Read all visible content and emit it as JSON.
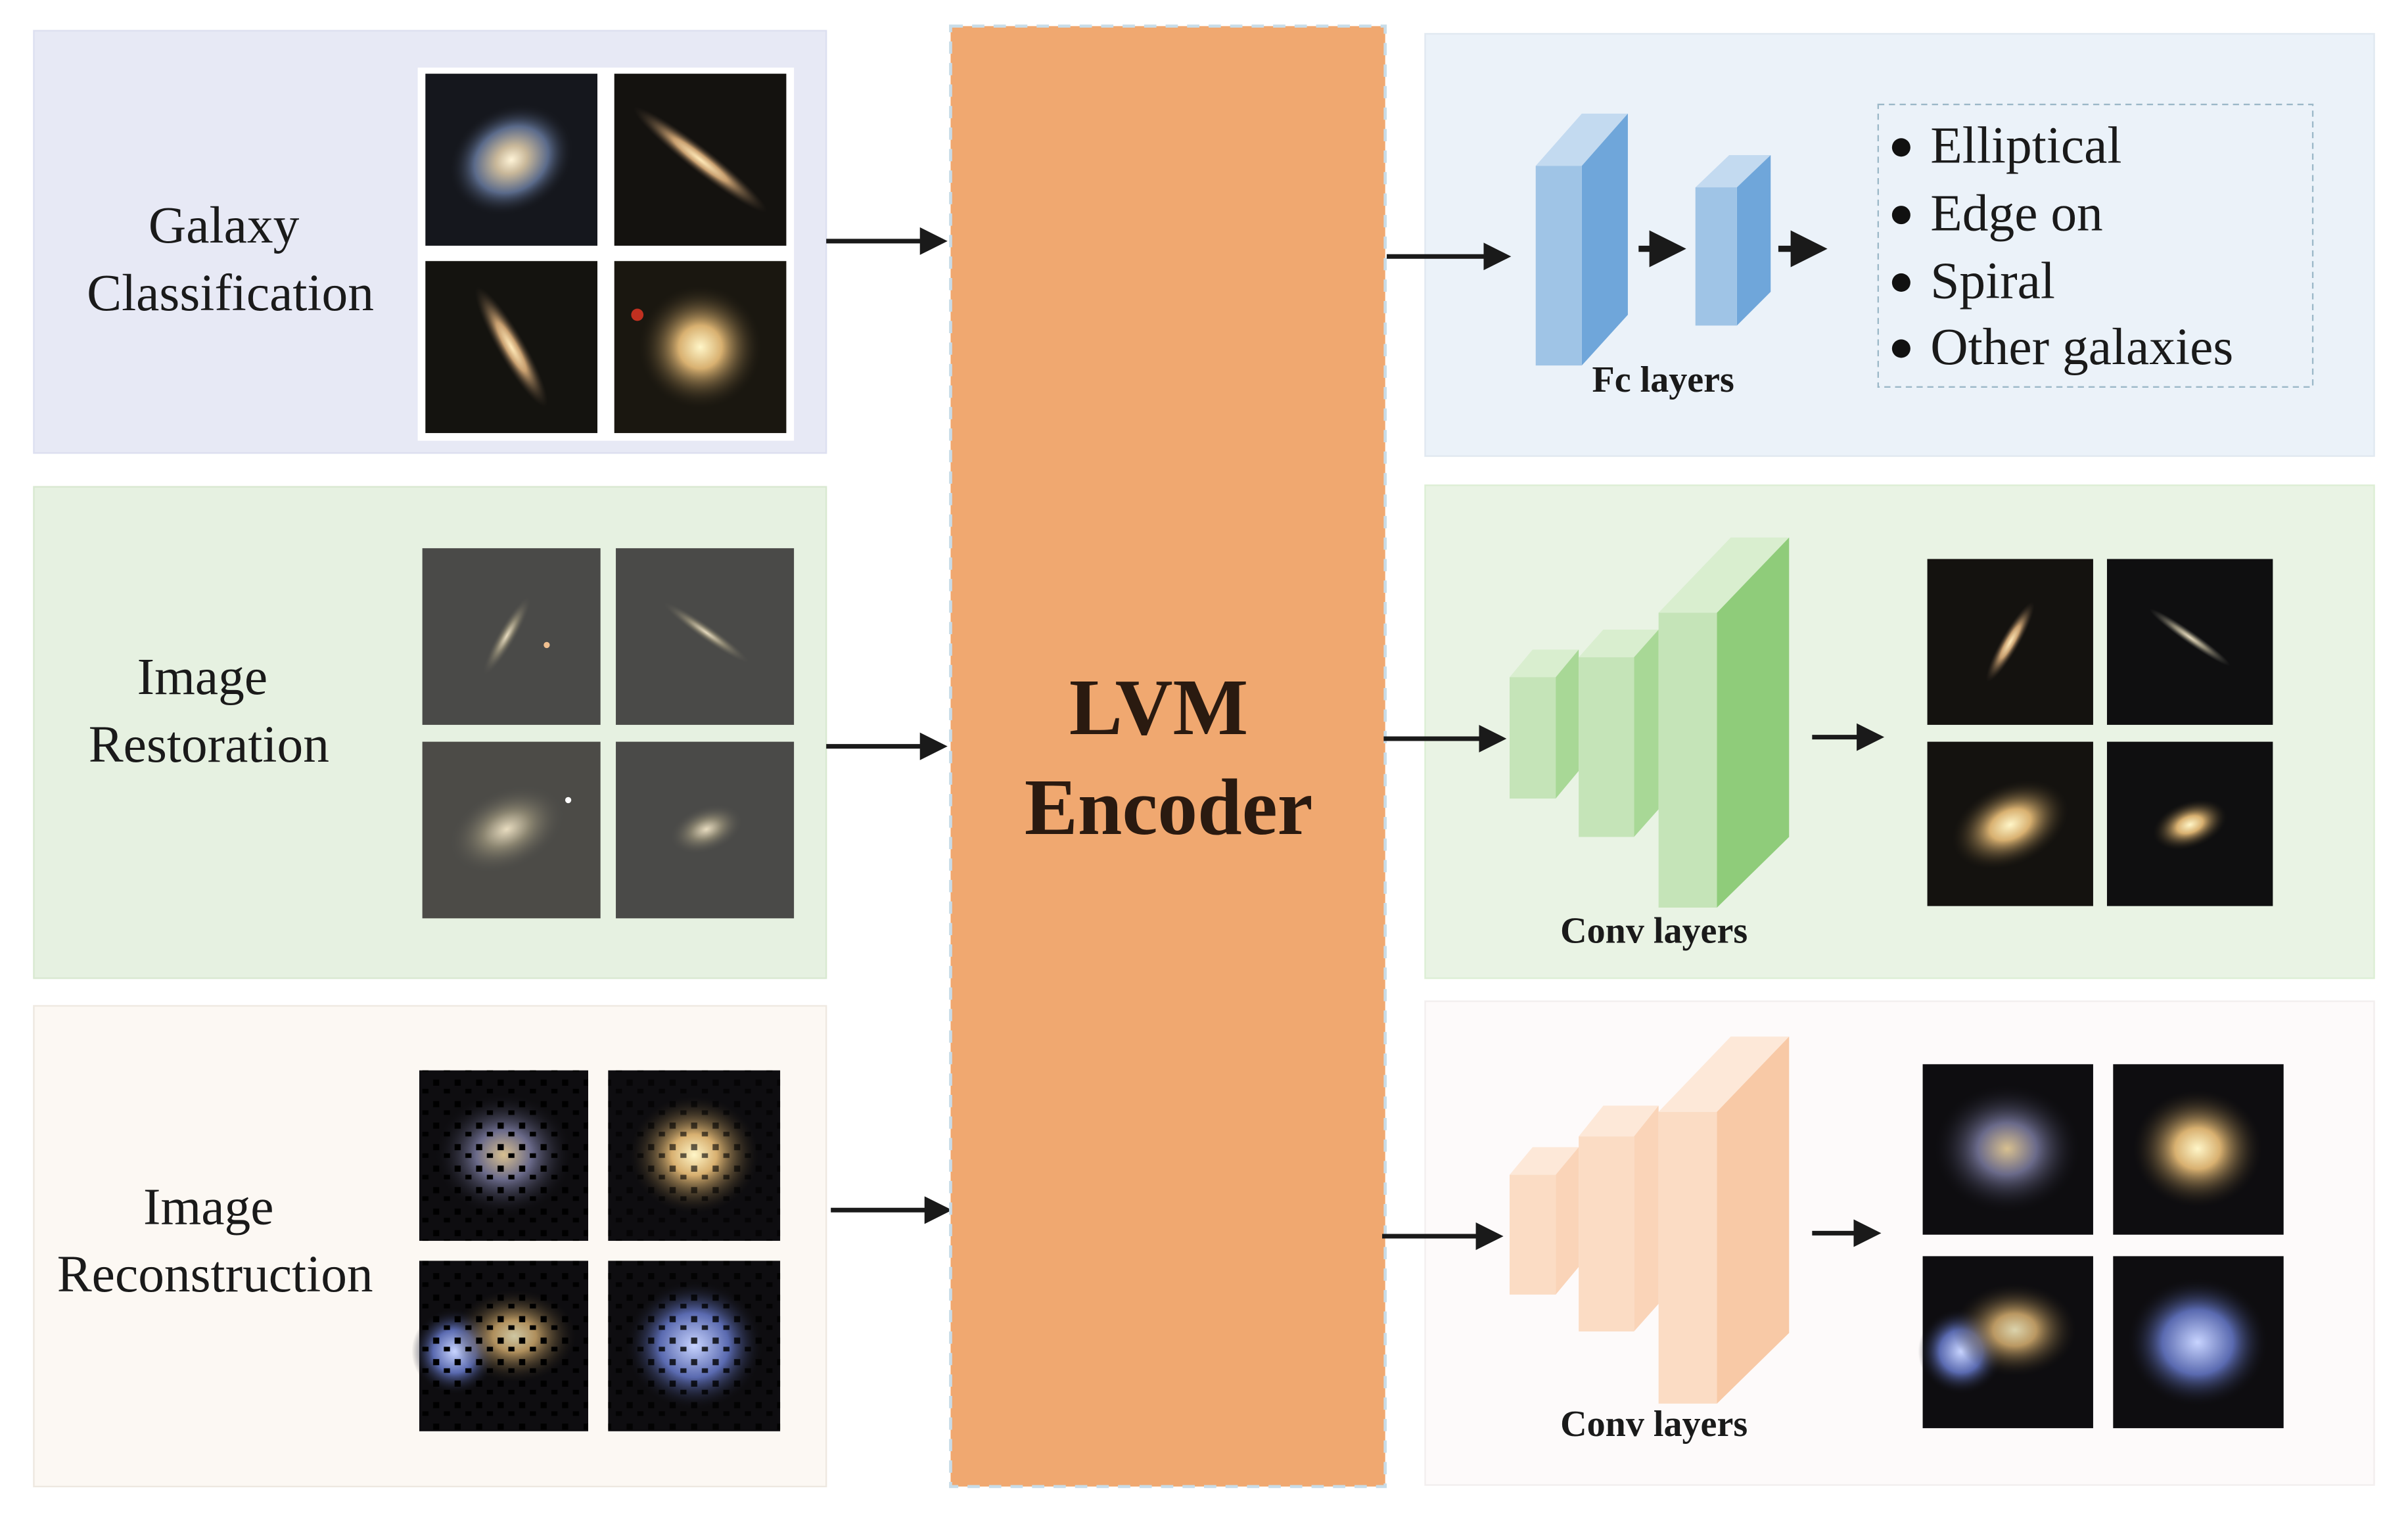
{
  "tasks": [
    {
      "title_lines": [
        "Galaxy",
        "Classification"
      ]
    },
    {
      "title_lines": [
        "Image",
        "Restoration"
      ]
    },
    {
      "title_lines": [
        "Image",
        "Reconstruction"
      ]
    }
  ],
  "encoder": {
    "lines": [
      "LVM",
      "Encoder"
    ],
    "color": "#f0a870"
  },
  "heads": {
    "classification": {
      "layer_label": "Fc layers",
      "classes": [
        "Elliptical",
        "Edge on",
        "Spiral",
        "Other galaxies"
      ]
    },
    "restoration": {
      "layer_label": "Conv layers"
    },
    "reconstruction": {
      "layer_label": "Conv layers"
    }
  },
  "colors": {
    "panel_classification": "#e7e9f5",
    "panel_restoration": "#e6f1e1",
    "panel_reconstruction": "#fcf8f3",
    "fc_blue": "#6fa6da",
    "conv_green": "#8fcc7a",
    "conv_peach": "#f8c9a6"
  }
}
